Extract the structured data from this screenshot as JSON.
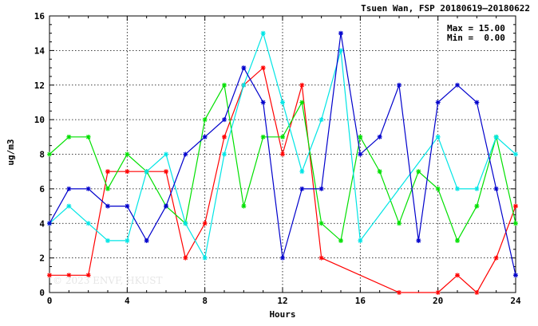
{
  "chart_data": {
    "type": "line",
    "title": "Tsuen Wan, FSP 20180619—20180622",
    "xlabel": "Hours",
    "ylabel": "ug/m3",
    "xlim": [
      0,
      24
    ],
    "ylim": [
      0,
      16
    ],
    "xticks": [
      0,
      4,
      8,
      12,
      16,
      20,
      24
    ],
    "yticks": [
      0,
      2,
      4,
      6,
      8,
      10,
      12,
      14,
      16
    ],
    "grid": true,
    "stats": {
      "max": "Max = 15.00",
      "min": "Min =  0.00"
    },
    "watermark": "© 2023 ENVF, HKUST",
    "series": [
      {
        "color": "#ff0000",
        "points": [
          [
            0,
            1
          ],
          [
            1,
            1
          ],
          [
            2,
            1
          ],
          [
            3,
            7
          ],
          [
            4,
            7
          ],
          [
            5,
            7
          ],
          [
            6,
            7
          ],
          [
            7,
            2
          ],
          [
            8,
            4
          ],
          [
            9,
            9
          ],
          [
            10,
            12
          ],
          [
            11,
            13
          ],
          [
            12,
            8
          ],
          [
            13,
            12
          ],
          [
            14,
            2
          ],
          [
            18,
            0
          ],
          [
            20,
            0
          ],
          [
            21,
            1
          ],
          [
            22,
            0
          ],
          [
            23,
            2
          ],
          [
            24,
            5
          ]
        ]
      },
      {
        "color": "#00e000",
        "points": [
          [
            0,
            8
          ],
          [
            1,
            9
          ],
          [
            2,
            9
          ],
          [
            3,
            6
          ],
          [
            4,
            8
          ],
          [
            5,
            7
          ],
          [
            6,
            5
          ],
          [
            7,
            4
          ],
          [
            8,
            10
          ],
          [
            9,
            12
          ],
          [
            10,
            5
          ],
          [
            11,
            9
          ],
          [
            12,
            9
          ],
          [
            13,
            11
          ],
          [
            14,
            4
          ],
          [
            15,
            3
          ],
          [
            16,
            9
          ],
          [
            17,
            7
          ],
          [
            18,
            4
          ],
          [
            19,
            7
          ],
          [
            20,
            6
          ],
          [
            21,
            3
          ],
          [
            22,
            5
          ],
          [
            23,
            9
          ],
          [
            24,
            4
          ]
        ]
      },
      {
        "color": "#00e5e5",
        "points": [
          [
            0,
            4
          ],
          [
            1,
            5
          ],
          [
            2,
            4
          ],
          [
            3,
            3
          ],
          [
            4,
            3
          ],
          [
            5,
            7
          ],
          [
            6,
            8
          ],
          [
            7,
            4
          ],
          [
            8,
            2
          ],
          [
            9,
            8
          ],
          [
            10,
            12
          ],
          [
            11,
            15
          ],
          [
            12,
            11
          ],
          [
            13,
            7
          ],
          [
            14,
            10
          ],
          [
            15,
            14
          ],
          [
            16,
            3
          ],
          [
            20,
            9
          ],
          [
            21,
            6
          ],
          [
            22,
            6
          ],
          [
            23,
            9
          ],
          [
            24,
            8
          ]
        ]
      },
      {
        "color": "#0000cc",
        "points": [
          [
            0,
            4
          ],
          [
            1,
            6
          ],
          [
            2,
            6
          ],
          [
            3,
            5
          ],
          [
            4,
            5
          ],
          [
            5,
            3
          ],
          [
            6,
            5
          ],
          [
            7,
            8
          ],
          [
            8,
            9
          ],
          [
            9,
            10
          ],
          [
            10,
            13
          ],
          [
            11,
            11
          ],
          [
            12,
            2
          ],
          [
            13,
            6
          ],
          [
            14,
            6
          ],
          [
            15,
            15
          ],
          [
            16,
            8
          ],
          [
            17,
            9
          ],
          [
            18,
            12
          ],
          [
            19,
            3
          ],
          [
            20,
            11
          ],
          [
            21,
            12
          ],
          [
            22,
            11
          ],
          [
            23,
            6
          ],
          [
            24,
            1
          ]
        ]
      }
    ]
  }
}
